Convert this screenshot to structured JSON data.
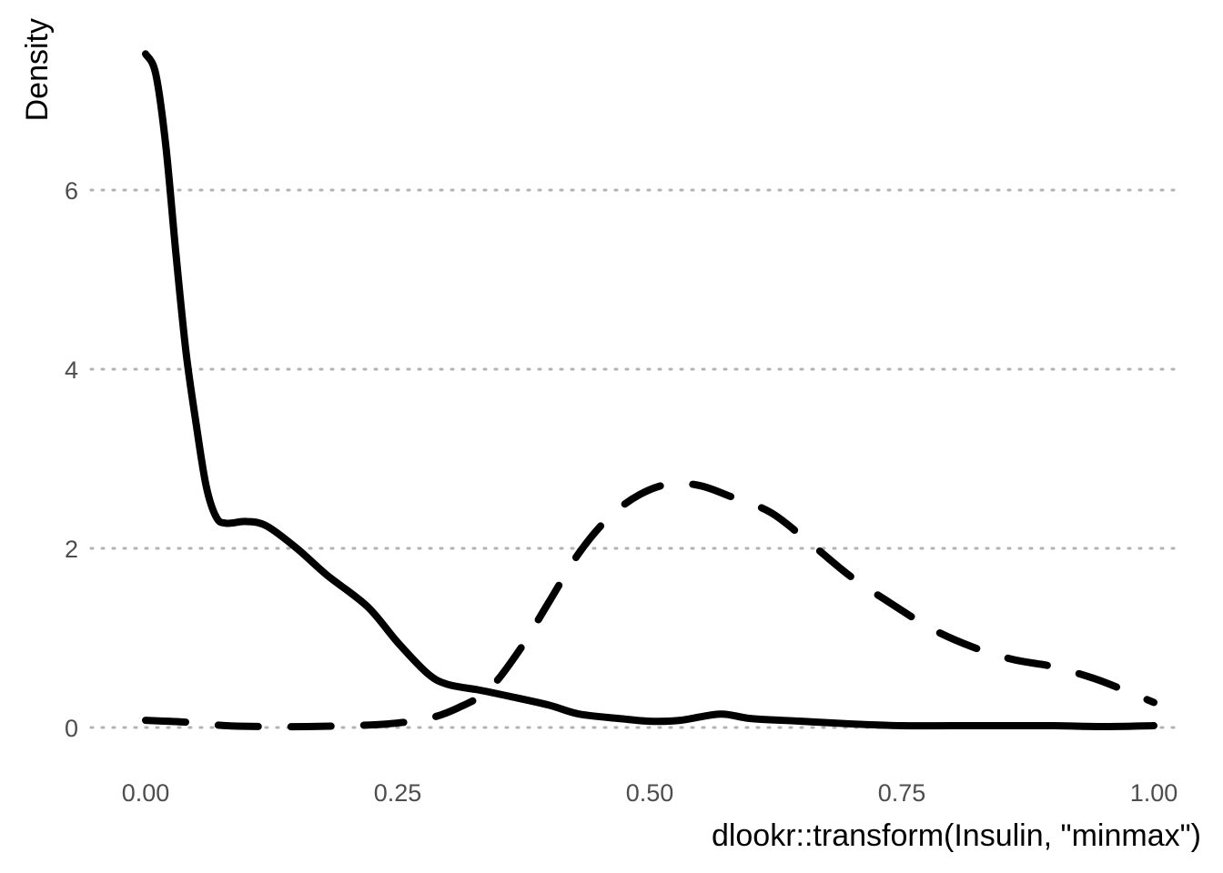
{
  "chart_data": {
    "type": "line",
    "title": "",
    "xlabel": "dlookr::transform(Insulin, \"minmax\")",
    "ylabel": "Density",
    "xlim": [
      0,
      1
    ],
    "ylim": [
      0,
      7.5
    ],
    "x_ticks": [
      {
        "value": 0,
        "label": "0.00"
      },
      {
        "value": 0.25,
        "label": "0.25"
      },
      {
        "value": 0.5,
        "label": "0.50"
      },
      {
        "value": 0.75,
        "label": "0.75"
      },
      {
        "value": 1,
        "label": "1.00"
      }
    ],
    "y_ticks": [
      {
        "value": 0,
        "label": "0"
      },
      {
        "value": 2,
        "label": "2"
      },
      {
        "value": 4,
        "label": "4"
      },
      {
        "value": 6,
        "label": "6"
      }
    ],
    "grid": "horizontal dotted",
    "legend": "none",
    "series": [
      {
        "line_style": "solid",
        "color": "#000000",
        "x": [
          0,
          0.01,
          0.02,
          0.03,
          0.04,
          0.05,
          0.06,
          0.07,
          0.08,
          0.1,
          0.12,
          0.15,
          0.18,
          0.22,
          0.25,
          0.28,
          0.3,
          0.33,
          0.36,
          0.4,
          0.43,
          0.47,
          0.5,
          0.53,
          0.57,
          0.6,
          0.65,
          0.7,
          0.75,
          0.8,
          0.85,
          0.9,
          0.95,
          1
        ],
        "y": [
          7.52,
          7.3,
          6.5,
          5.3,
          4.2,
          3.4,
          2.7,
          2.35,
          2.28,
          2.3,
          2.25,
          2.0,
          1.7,
          1.35,
          0.95,
          0.6,
          0.48,
          0.42,
          0.35,
          0.25,
          0.15,
          0.1,
          0.07,
          0.08,
          0.15,
          0.1,
          0.07,
          0.04,
          0.02,
          0.02,
          0.02,
          0.02,
          0.01,
          0.02
        ]
      },
      {
        "line_style": "dashed",
        "color": "#000000",
        "x": [
          0,
          0.04,
          0.08,
          0.12,
          0.16,
          0.2,
          0.24,
          0.28,
          0.31,
          0.34,
          0.37,
          0.4,
          0.43,
          0.46,
          0.49,
          0.52,
          0.55,
          0.58,
          0.62,
          0.66,
          0.7,
          0.74,
          0.78,
          0.82,
          0.86,
          0.9,
          0.94,
          0.97,
          1
        ],
        "y": [
          0.08,
          0.06,
          0.02,
          0.01,
          0.01,
          0.02,
          0.04,
          0.1,
          0.22,
          0.42,
          0.85,
          1.4,
          1.95,
          2.35,
          2.6,
          2.72,
          2.7,
          2.58,
          2.4,
          2.05,
          1.68,
          1.38,
          1.1,
          0.9,
          0.76,
          0.68,
          0.55,
          0.42,
          0.28
        ]
      }
    ]
  }
}
